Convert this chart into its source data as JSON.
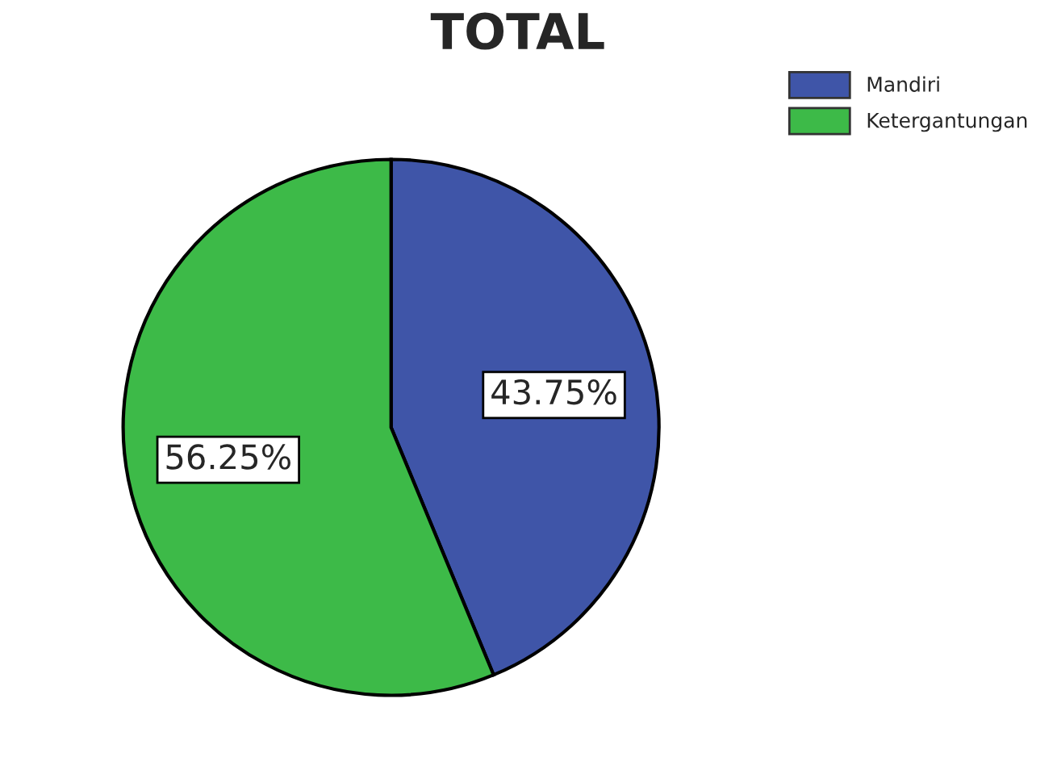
{
  "chart_data": {
    "type": "pie",
    "title": "TOTAL",
    "categories": [
      "Mandiri",
      "Ketergantungan"
    ],
    "values": [
      43.75,
      56.25
    ],
    "colors": [
      "#3f55a8",
      "#3dba48"
    ],
    "value_labels": [
      "43.75%",
      "56.25%"
    ],
    "legend": "top right"
  }
}
